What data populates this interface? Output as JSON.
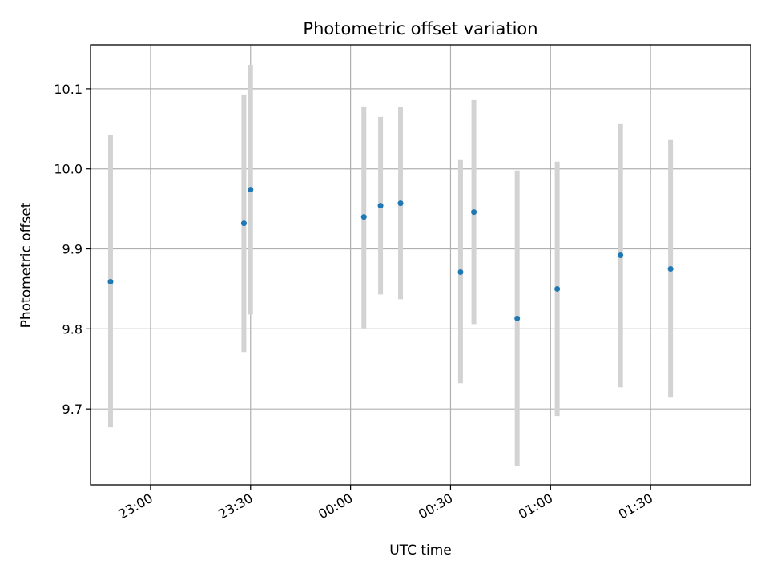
{
  "chart_data": {
    "type": "scatter",
    "title": "Photometric offset variation",
    "xlabel": "UTC time",
    "ylabel": "Photometric offset",
    "x_axis": {
      "type": "time",
      "range": [
        "22:42",
        "02:00"
      ],
      "ticks": [
        "23:00",
        "23:30",
        "00:00",
        "00:30",
        "01:00",
        "01:30"
      ]
    },
    "y_axis": {
      "range": [
        9.605,
        10.155
      ],
      "ticks": [
        9.7,
        9.8,
        9.9,
        10.0,
        10.1
      ],
      "tick_labels": [
        "9.7",
        "9.8",
        "9.9",
        "10.0",
        "10.1"
      ]
    },
    "grid": true,
    "marker_color": "#1f77b4",
    "errorbar_color": "#d3d3d3",
    "series": [
      {
        "points": [
          {
            "x": "22:48",
            "y": 9.859,
            "ylow": 9.677,
            "yhigh": 10.042
          },
          {
            "x": "23:28",
            "y": 9.932,
            "ylow": 9.771,
            "yhigh": 10.093
          },
          {
            "x": "23:30",
            "y": 9.974,
            "ylow": 9.818,
            "yhigh": 10.13
          },
          {
            "x": "00:04",
            "y": 9.94,
            "ylow": 9.801,
            "yhigh": 10.078
          },
          {
            "x": "00:09",
            "y": 9.954,
            "ylow": 9.843,
            "yhigh": 10.065
          },
          {
            "x": "00:15",
            "y": 9.957,
            "ylow": 9.837,
            "yhigh": 10.077
          },
          {
            "x": "00:33",
            "y": 9.871,
            "ylow": 9.732,
            "yhigh": 10.011
          },
          {
            "x": "00:37",
            "y": 9.946,
            "ylow": 9.806,
            "yhigh": 10.086
          },
          {
            "x": "00:50",
            "y": 9.813,
            "ylow": 9.629,
            "yhigh": 9.998
          },
          {
            "x": "01:02",
            "y": 9.85,
            "ylow": 9.691,
            "yhigh": 10.009
          },
          {
            "x": "01:21",
            "y": 9.892,
            "ylow": 9.727,
            "yhigh": 10.056
          },
          {
            "x": "01:36",
            "y": 9.875,
            "ylow": 9.714,
            "yhigh": 10.036
          }
        ]
      }
    ]
  }
}
